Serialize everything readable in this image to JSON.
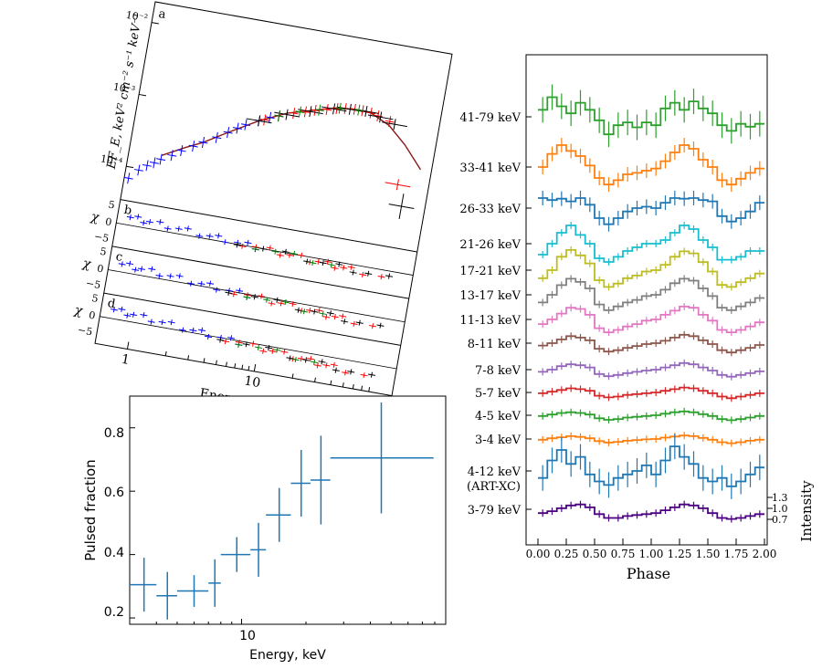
{
  "chart_data": [
    {
      "type": "scatter",
      "panel_letters": [
        "a",
        "b",
        "c",
        "d"
      ],
      "ylabel": "EF_E, keV² cm⁻² s⁻¹ keV⁻¹",
      "yticklabels": [
        "10⁻²",
        "10⁻³",
        "10⁻⁴"
      ],
      "residual_label": "χ",
      "residual_ticks": [
        "5",
        "0",
        "−5"
      ],
      "xticklabels": [
        "1",
        "10"
      ],
      "xlabel": "Energy, keV",
      "scale": "log-log",
      "series_colors": [
        "#0000ff",
        "#ff0000",
        "#000000",
        "#008000"
      ],
      "spectrum": {
        "blue": [
          [
            0.6,
            7e-05
          ],
          [
            0.7,
            9.5e-05
          ],
          [
            0.8,
            0.000115
          ],
          [
            0.9,
            0.00013
          ],
          [
            1.0,
            0.00015
          ],
          [
            1.2,
            0.00018
          ],
          [
            1.4,
            0.00022
          ],
          [
            1.7,
            0.00027
          ],
          [
            2.0,
            0.00032
          ],
          [
            2.5,
            0.0004
          ],
          [
            3.0,
            0.0005
          ],
          [
            3.5,
            0.0006
          ],
          [
            4.0,
            0.0007
          ],
          [
            5.0,
            0.00085
          ],
          [
            6.0,
            0.001
          ],
          [
            7.0,
            0.0011
          ]
        ],
        "red": [
          [
            5.5,
            0.0009
          ],
          [
            7.0,
            0.0011
          ],
          [
            9.0,
            0.0013
          ],
          [
            11.0,
            0.00145
          ],
          [
            13.0,
            0.0016
          ],
          [
            16.0,
            0.00175
          ],
          [
            19.0,
            0.0019
          ],
          [
            22.0,
            0.002
          ],
          [
            26.0,
            0.00205
          ],
          [
            30.0,
            0.00205
          ],
          [
            35.0,
            0.002
          ],
          [
            40.0,
            0.0019
          ],
          [
            50.0,
            0.0017
          ],
          [
            70.0,
            0.00025
          ]
        ],
        "black": [
          [
            5.0,
            0.00085
          ],
          [
            8.0,
            0.0012
          ],
          [
            12.0,
            0.0015
          ],
          [
            18.0,
            0.00185
          ],
          [
            24.0,
            0.002
          ],
          [
            32.0,
            0.00205
          ],
          [
            42.0,
            0.00185
          ],
          [
            55.0,
            0.0016
          ],
          [
            80.0,
            0.00013
          ]
        ],
        "green": [
          [
            7.0,
            0.0011
          ],
          [
            10.0,
            0.0014
          ],
          [
            14.0,
            0.00165
          ],
          [
            20.0,
            0.00195
          ],
          [
            28.0,
            0.00205
          ]
        ]
      },
      "model": [
        [
          1.0,
          0.00017
        ],
        [
          1.5,
          0.00025
        ],
        [
          2.0,
          0.00032
        ],
        [
          3.0,
          0.0005
        ],
        [
          5.0,
          0.00085
        ],
        [
          8.0,
          0.00125
        ],
        [
          12.0,
          0.00155
        ],
        [
          18.0,
          0.0019
        ],
        [
          25.0,
          0.00205
        ],
        [
          35.0,
          0.002
        ],
        [
          50.0,
          0.0015
        ],
        [
          70.0,
          0.0009
        ],
        [
          100.0,
          0.00045
        ]
      ]
    },
    {
      "type": "line",
      "xlabel": "Phase",
      "ylabel": "Intensity",
      "xticks": [
        "0.00",
        "0.25",
        "0.50",
        "0.75",
        "1.00",
        "1.25",
        "1.50",
        "1.75",
        "2.00"
      ],
      "intensity_ticks": [
        "1.3",
        "1.0",
        "0.7"
      ],
      "series": [
        {
          "name": "41-79 keV",
          "color": "#2ca02c",
          "values": [
            1.1,
            1.28,
            1.15,
            1.05,
            1.2,
            1.1,
            0.95,
            0.75,
            0.88,
            0.92,
            0.85,
            0.92,
            0.88,
            1.12,
            1.2,
            1.1,
            1.22,
            1.12,
            1.05,
            0.88,
            0.8,
            0.9,
            0.86,
            0.9
          ]
        },
        {
          "name": "33-41 keV",
          "color": "#ff7f0e",
          "values": [
            1.0,
            1.18,
            1.3,
            1.22,
            1.15,
            1.02,
            0.85,
            0.76,
            0.82,
            0.9,
            0.92,
            0.95,
            0.98,
            1.08,
            1.2,
            1.3,
            1.25,
            1.1,
            1.0,
            0.82,
            0.76,
            0.84,
            0.92,
            0.98
          ]
        },
        {
          "name": "26-33 keV",
          "color": "#1f77b4",
          "values": [
            1.15,
            1.12,
            1.14,
            1.1,
            1.15,
            1.05,
            0.85,
            0.76,
            0.85,
            0.95,
            1.0,
            1.02,
            1.0,
            1.08,
            1.15,
            1.14,
            1.15,
            1.12,
            1.1,
            0.88,
            0.8,
            0.85,
            0.95,
            1.08
          ]
        },
        {
          "name": "21-26 keV",
          "color": "#17becf",
          "values": [
            0.85,
            1.0,
            1.15,
            1.25,
            1.12,
            1.0,
            0.8,
            0.75,
            0.82,
            0.9,
            0.95,
            1.0,
            1.0,
            1.05,
            1.15,
            1.25,
            1.2,
            1.05,
            0.95,
            0.78,
            0.78,
            0.82,
            0.9,
            0.9
          ]
        },
        {
          "name": "17-21 keV",
          "color": "#bcbd22",
          "values": [
            0.88,
            1.0,
            1.2,
            1.3,
            1.22,
            1.1,
            0.85,
            0.75,
            0.8,
            0.88,
            0.92,
            0.98,
            1.0,
            1.08,
            1.2,
            1.28,
            1.25,
            1.12,
            0.98,
            0.78,
            0.75,
            0.82,
            0.88,
            0.95
          ]
        },
        {
          "name": "13-17 keV",
          "color": "#7f7f7f",
          "values": [
            0.88,
            1.0,
            1.15,
            1.25,
            1.2,
            1.1,
            0.85,
            0.76,
            0.82,
            0.88,
            0.92,
            0.98,
            1.0,
            1.08,
            1.18,
            1.25,
            1.22,
            1.1,
            0.98,
            0.8,
            0.76,
            0.82,
            0.88,
            0.95
          ]
        },
        {
          "name": "11-13 keV",
          "color": "#e377c2",
          "values": [
            0.92,
            1.0,
            1.1,
            1.2,
            1.18,
            1.08,
            0.85,
            0.78,
            0.82,
            0.88,
            0.92,
            0.98,
            1.0,
            1.08,
            1.15,
            1.22,
            1.2,
            1.08,
            0.98,
            0.82,
            0.78,
            0.82,
            0.88,
            0.95
          ]
        },
        {
          "name": "8-11 keV",
          "color": "#8c564b",
          "values": [
            0.95,
            1.0,
            1.08,
            1.15,
            1.12,
            1.06,
            0.88,
            0.82,
            0.85,
            0.9,
            0.94,
            0.98,
            1.0,
            1.05,
            1.12,
            1.18,
            1.15,
            1.06,
            0.98,
            0.85,
            0.8,
            0.85,
            0.9,
            0.96
          ]
        },
        {
          "name": "7-8 keV",
          "color": "#9467bd",
          "values": [
            0.95,
            1.0,
            1.08,
            1.12,
            1.1,
            1.05,
            0.9,
            0.85,
            0.88,
            0.92,
            0.95,
            0.98,
            1.0,
            1.05,
            1.1,
            1.15,
            1.12,
            1.05,
            0.98,
            0.88,
            0.84,
            0.88,
            0.92,
            0.96
          ]
        },
        {
          "name": "5-7 keV",
          "color": "#d62728",
          "values": [
            0.98,
            1.02,
            1.06,
            1.1,
            1.08,
            1.04,
            0.92,
            0.88,
            0.9,
            0.94,
            0.96,
            0.98,
            1.0,
            1.04,
            1.08,
            1.12,
            1.1,
            1.04,
            0.98,
            0.9,
            0.86,
            0.9,
            0.94,
            0.98
          ]
        },
        {
          "name": "4-5 keV",
          "color": "#2ca02c",
          "values": [
            0.98,
            1.02,
            1.06,
            1.08,
            1.06,
            1.02,
            0.92,
            0.88,
            0.9,
            0.94,
            0.96,
            0.98,
            1.0,
            1.04,
            1.08,
            1.1,
            1.08,
            1.03,
            0.98,
            0.9,
            0.87,
            0.9,
            0.94,
            0.98
          ]
        },
        {
          "name": "3-4 keV",
          "color": "#ff7f0e",
          "values": [
            0.98,
            1.02,
            1.05,
            1.08,
            1.06,
            1.02,
            0.94,
            0.9,
            0.92,
            0.95,
            0.97,
            0.99,
            1.0,
            1.04,
            1.07,
            1.1,
            1.08,
            1.03,
            0.98,
            0.91,
            0.88,
            0.91,
            0.95,
            0.98
          ]
        },
        {
          "name": "4-12 keV\n(ART-XC)",
          "color": "#1f77b4",
          "values": [
            0.9,
            1.15,
            1.3,
            1.1,
            1.2,
            0.95,
            0.85,
            0.8,
            0.9,
            0.95,
            1.0,
            1.08,
            0.95,
            1.15,
            1.35,
            1.2,
            1.1,
            0.9,
            0.85,
            0.9,
            0.78,
            0.85,
            0.95,
            1.05
          ]
        },
        {
          "name": "3-79 keV",
          "color": "#4b0082",
          "values": [
            0.92,
            0.96,
            1.02,
            1.08,
            1.1,
            1.04,
            0.9,
            0.82,
            0.82,
            0.86,
            0.88,
            0.9,
            0.92,
            0.98,
            1.04,
            1.1,
            1.08,
            1.02,
            0.92,
            0.82,
            0.8,
            0.82,
            0.86,
            0.9
          ]
        }
      ]
    },
    {
      "type": "scatter",
      "xlabel": "Energy, keV",
      "ylabel": "Pulsed fraction",
      "xscale": "log",
      "xlim": [
        3,
        90
      ],
      "ylim": [
        0.18,
        0.9
      ],
      "yticks": [
        "0.2",
        "0.4",
        "0.6",
        "0.8"
      ],
      "xticks": [
        "10"
      ],
      "color": "#1f77b4",
      "points": [
        {
          "x": 3.5,
          "xlo": 3,
          "xhi": 4,
          "y": 0.305,
          "yerr": 0.085
        },
        {
          "x": 4.5,
          "xlo": 4,
          "xhi": 5,
          "y": 0.27,
          "yerr": 0.075
        },
        {
          "x": 6.0,
          "xlo": 5,
          "xhi": 7,
          "y": 0.285,
          "yerr": 0.05
        },
        {
          "x": 7.5,
          "xlo": 7,
          "xhi": 8,
          "y": 0.31,
          "yerr": 0.075
        },
        {
          "x": 9.5,
          "xlo": 8,
          "xhi": 11,
          "y": 0.4,
          "yerr": 0.055
        },
        {
          "x": 12.0,
          "xlo": 11,
          "xhi": 13,
          "y": 0.415,
          "yerr": 0.085
        },
        {
          "x": 15.0,
          "xlo": 13,
          "xhi": 17,
          "y": 0.525,
          "yerr": 0.085
        },
        {
          "x": 19.0,
          "xlo": 17,
          "xhi": 21,
          "y": 0.625,
          "yerr": 0.105
        },
        {
          "x": 23.5,
          "xlo": 21,
          "xhi": 26,
          "y": 0.635,
          "yerr": 0.14
        },
        {
          "x": 45.0,
          "xlo": 26,
          "xhi": 79,
          "y": 0.705,
          "yerr": 0.175
        }
      ]
    }
  ]
}
